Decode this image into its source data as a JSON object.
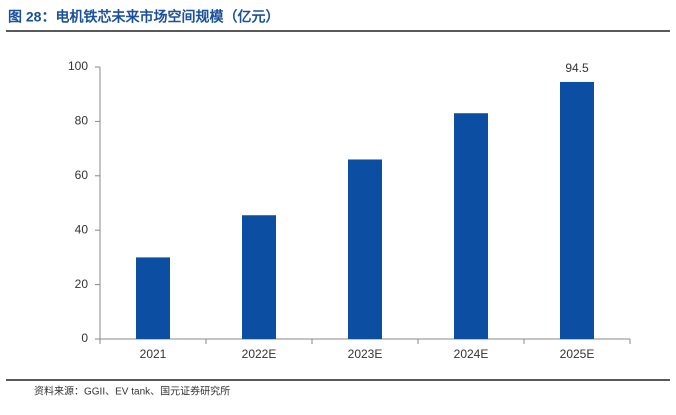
{
  "chart_data": {
    "type": "bar",
    "title": "图 28：电机铁芯未来市场空间规模（亿元）",
    "source": "资料来源：GGII、EV tank、国元证券研究所",
    "categories": [
      "2021",
      "2022E",
      "2023E",
      "2024E",
      "2025E"
    ],
    "values": [
      30,
      45.5,
      66,
      83,
      94.5
    ],
    "value_labels": [
      null,
      null,
      null,
      null,
      "94.5"
    ],
    "color": "#0b4ea2",
    "ylim": [
      0,
      100
    ],
    "yticks": [
      0,
      20,
      40,
      60,
      80,
      100
    ],
    "grid": false
  }
}
